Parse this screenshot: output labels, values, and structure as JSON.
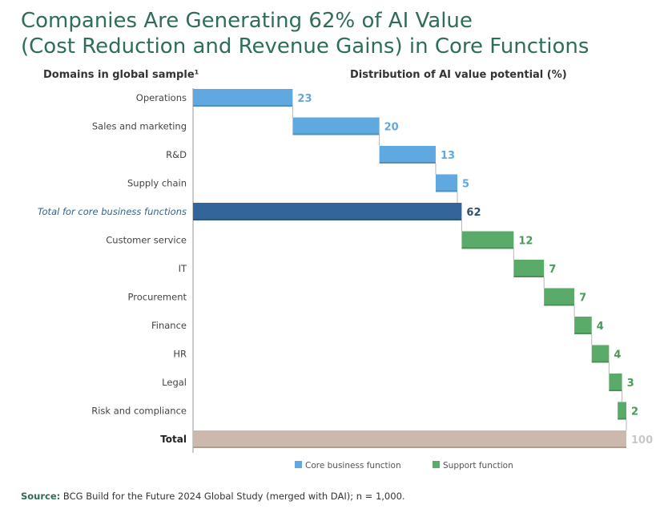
{
  "title": {
    "line1": "Companies Are Generating 62% of AI Value",
    "line2": "(Cost Reduction and Revenue Gains) in Core Functions"
  },
  "left_header": "Domains in global sample¹",
  "right_header": "Distribution of AI value potential (%)",
  "colors": {
    "core": "#5fa8e0",
    "core_total": "#34659a",
    "support": "#5aaa6a",
    "total": "#cdb8ae",
    "core_label": "#5fa8e0",
    "core_total_label": "#2f4f6f",
    "support_label": "#4a9a5a",
    "total_label": "#c8c8c8"
  },
  "chart_data": {
    "type": "waterfall",
    "xlim": [
      0,
      100
    ],
    "unit": "%",
    "rows": [
      {
        "label": "Operations",
        "value": 23,
        "start": 0,
        "kind": "core"
      },
      {
        "label": "Sales and marketing",
        "value": 20,
        "start": 23,
        "kind": "core"
      },
      {
        "label": "R&D",
        "value": 13,
        "start": 43,
        "kind": "core"
      },
      {
        "label": "Supply chain",
        "value": 5,
        "start": 56,
        "kind": "core"
      },
      {
        "label": "Total for core business functions",
        "value": 62,
        "start": 0,
        "kind": "core_total"
      },
      {
        "label": "Customer service",
        "value": 12,
        "start": 62,
        "kind": "support"
      },
      {
        "label": "IT",
        "value": 7,
        "start": 74,
        "kind": "support"
      },
      {
        "label": "Procurement",
        "value": 7,
        "start": 81,
        "kind": "support"
      },
      {
        "label": "Finance",
        "value": 4,
        "start": 88,
        "kind": "support"
      },
      {
        "label": "HR",
        "value": 4,
        "start": 92,
        "kind": "support"
      },
      {
        "label": "Legal",
        "value": 3,
        "start": 96,
        "kind": "support"
      },
      {
        "label": "Risk and compliance",
        "value": 2,
        "start": 98,
        "kind": "support"
      },
      {
        "label": "Total",
        "value": 100,
        "start": 0,
        "kind": "total"
      }
    ],
    "legend": [
      {
        "label": "Core business function",
        "kind": "core"
      },
      {
        "label": "Support function",
        "kind": "support"
      }
    ]
  },
  "source": {
    "label": "Source:",
    "text": "BCG Build for the Future 2024 Global Study (merged with DAI); n = 1,000."
  }
}
